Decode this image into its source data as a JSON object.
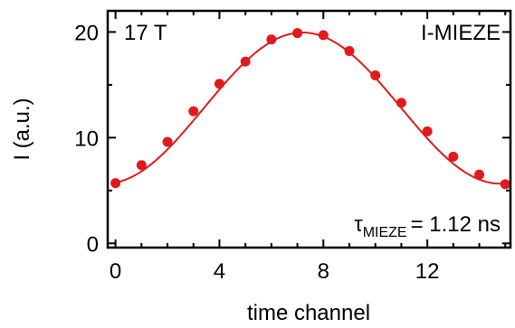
{
  "chart_data": {
    "type": "scatter",
    "xlabel": "time channel",
    "ylabel": "I (a.u.)",
    "xlim": [
      -0.3,
      15.2
    ],
    "ylim": [
      -0.4,
      22
    ],
    "xticks": [
      0,
      4,
      8,
      12
    ],
    "yticks": [
      0,
      10,
      20
    ],
    "xtick_labels": [
      "0",
      "4",
      "8",
      "12"
    ],
    "ytick_labels": [
      "0",
      "10",
      "20"
    ],
    "grid": false,
    "annotations": {
      "field": "17 T",
      "method": "I-MIEZE",
      "tau_symbol": "τ",
      "tau_subscript": "MIEZE",
      "tau_value": "= 1.12 ns"
    },
    "colors": {
      "series": "#e31a1c",
      "axis": "#000000"
    },
    "series": [
      {
        "kind": "points",
        "x": [
          0,
          1,
          2,
          3,
          4,
          5,
          6,
          7,
          8,
          9,
          10,
          11,
          12,
          13,
          14,
          15
        ],
        "y": [
          5.7,
          7.4,
          9.6,
          12.5,
          15.1,
          17.2,
          19.3,
          19.9,
          19.7,
          18.2,
          15.9,
          13.3,
          10.6,
          8.2,
          6.5,
          5.6
        ]
      }
    ],
    "fit": {
      "kind": "cosine",
      "offset": 12.8,
      "amplitude": 7.15,
      "period": 15.2,
      "center": 7.2
    }
  }
}
